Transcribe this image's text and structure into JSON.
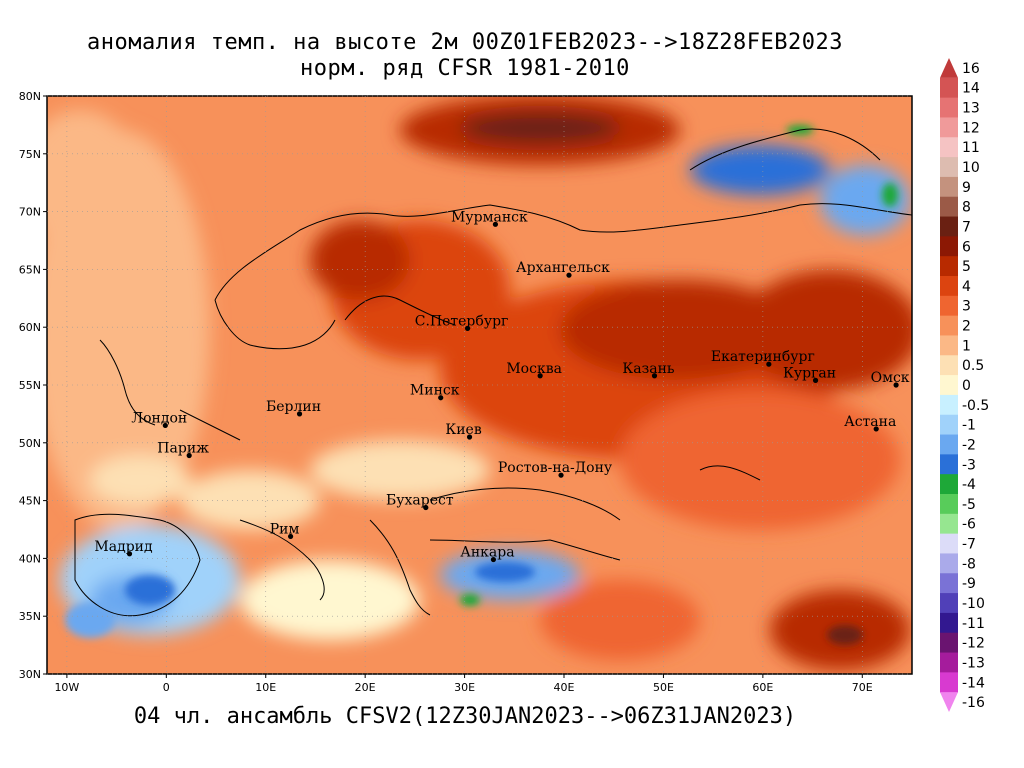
{
  "title_line1": "аномалия темп. на высоте 2м 00Z01FEB2023-->18Z28FEB2023",
  "title_line2": "норм. ряд CFSR 1981-2010",
  "bottom_caption": "04 чл. ансамбль CFSV2(12Z30JAN2023-->06Z31JAN2023)",
  "axes": {
    "lon_range": [
      -12,
      75
    ],
    "lat_range": [
      30,
      80
    ],
    "lat_ticks": [
      "30N",
      "35N",
      "40N",
      "45N",
      "50N",
      "55N",
      "60N",
      "65N",
      "70N",
      "75N",
      "80N"
    ],
    "lat_values": [
      30,
      35,
      40,
      45,
      50,
      55,
      60,
      65,
      70,
      75,
      80
    ],
    "lon_ticks": [
      "10W",
      "0",
      "10E",
      "20E",
      "30E",
      "40E",
      "50E",
      "60E",
      "70E"
    ],
    "lon_values": [
      -10,
      0,
      10,
      20,
      30,
      40,
      50,
      60,
      70
    ]
  },
  "cities": [
    {
      "name": "Мурманск",
      "lon": 33.1,
      "lat": 68.9
    },
    {
      "name": "Архангельск",
      "lon": 40.5,
      "lat": 64.5
    },
    {
      "name": "С.Петербург",
      "lon": 30.3,
      "lat": 59.9
    },
    {
      "name": "Москва",
      "lon": 37.6,
      "lat": 55.8
    },
    {
      "name": "Казань",
      "lon": 49.1,
      "lat": 55.8
    },
    {
      "name": "Екатеринбург",
      "lon": 60.6,
      "lat": 56.8
    },
    {
      "name": "Курган",
      "lon": 65.3,
      "lat": 55.4
    },
    {
      "name": "Омск",
      "lon": 73.4,
      "lat": 55.0
    },
    {
      "name": "Астана",
      "lon": 71.4,
      "lat": 51.2
    },
    {
      "name": "Минск",
      "lon": 27.6,
      "lat": 53.9
    },
    {
      "name": "Берлин",
      "lon": 13.4,
      "lat": 52.5
    },
    {
      "name": "Лондон",
      "lon": -0.1,
      "lat": 51.5
    },
    {
      "name": "Париж",
      "lon": 2.3,
      "lat": 48.9
    },
    {
      "name": "Киев",
      "lon": 30.5,
      "lat": 50.5
    },
    {
      "name": "Ростов-на-Дону",
      "lon": 39.7,
      "lat": 47.2
    },
    {
      "name": "Бухарест",
      "lon": 26.1,
      "lat": 44.4
    },
    {
      "name": "Рим",
      "lon": 12.5,
      "lat": 41.9
    },
    {
      "name": "Мадрид",
      "lon": -3.7,
      "lat": 40.4
    },
    {
      "name": "Анкара",
      "lon": 32.9,
      "lat": 39.9
    }
  ],
  "colorbar": [
    {
      "label": "16",
      "color": "#c03a3a"
    },
    {
      "label": "14",
      "color": "#d45454"
    },
    {
      "label": "13",
      "color": "#e67373"
    },
    {
      "label": "12",
      "color": "#f09a9a"
    },
    {
      "label": "11",
      "color": "#f5c3c3"
    },
    {
      "label": "10",
      "color": "#ddbcb0"
    },
    {
      "label": "9",
      "color": "#c4927e"
    },
    {
      "label": "8",
      "color": "#9b5a47"
    },
    {
      "label": "7",
      "color": "#6a2012"
    },
    {
      "label": "6",
      "color": "#8c1804"
    },
    {
      "label": "5",
      "color": "#b82a00"
    },
    {
      "label": "4",
      "color": "#dc4410"
    },
    {
      "label": "3",
      "color": "#ef6530"
    },
    {
      "label": "2",
      "color": "#f7915a"
    },
    {
      "label": "1",
      "color": "#fbb886"
    },
    {
      "label": "0.5",
      "color": "#fde0b4"
    },
    {
      "label": "0",
      "color": "#fff7d0"
    },
    {
      "label": "-0.5",
      "color": "#c8f0ff"
    },
    {
      "label": "-1",
      "color": "#a0d2fa"
    },
    {
      "label": "-2",
      "color": "#6aa8f0"
    },
    {
      "label": "-3",
      "color": "#2a70d8"
    },
    {
      "label": "-4",
      "color": "#1ea838"
    },
    {
      "label": "-5",
      "color": "#58cc5a"
    },
    {
      "label": "-6",
      "color": "#96e690"
    },
    {
      "label": "-7",
      "color": "#dcdcf8"
    },
    {
      "label": "-8",
      "color": "#aaaaea"
    },
    {
      "label": "-9",
      "color": "#7a72d6"
    },
    {
      "label": "-10",
      "color": "#5040b8"
    },
    {
      "label": "-11",
      "color": "#321890"
    },
    {
      "label": "-12",
      "color": "#6a1470"
    },
    {
      "label": "-13",
      "color": "#a51c9c"
    },
    {
      "label": "-14",
      "color": "#d83ad0"
    },
    {
      "label": "-16",
      "color": "#f084ee"
    }
  ]
}
